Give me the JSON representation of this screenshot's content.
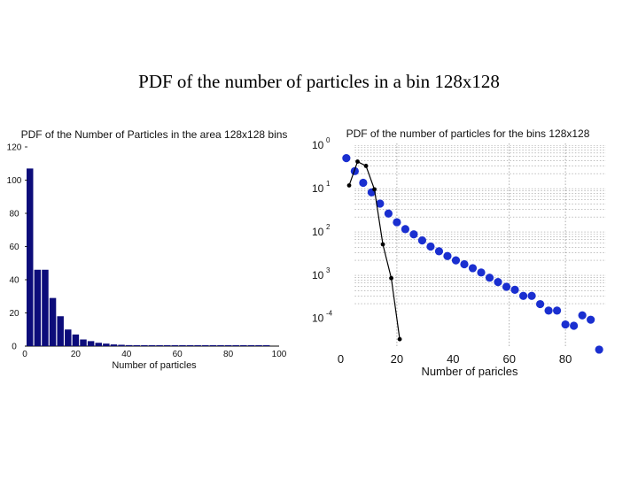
{
  "slide": {
    "title": "PDF of the number of particles in a bin 128x128"
  },
  "colors": {
    "bar": "#0c0c7a",
    "dot": "#1a2fd0",
    "line": "#000000",
    "grid": "#9a9a9a"
  },
  "chart_data": [
    {
      "type": "bar",
      "title": "PDF of the Number of Particles in the area 128x128 bins",
      "xlabel": "Number of particles",
      "ylabel": "",
      "xlim": [
        0,
        100
      ],
      "ylim": [
        0,
        120
      ],
      "xticks": [
        "0",
        "20",
        "40",
        "60",
        "80",
        "100"
      ],
      "yticks": [
        "0",
        "20",
        "40",
        "60",
        "80",
        "100",
        "120"
      ],
      "bar_width": 2.6,
      "x": [
        2,
        5,
        8,
        11,
        14,
        17,
        20,
        23,
        26,
        29,
        32,
        35,
        38,
        41,
        44,
        47,
        50,
        53,
        56,
        59,
        62,
        65,
        68,
        71,
        74,
        77,
        80,
        83,
        86,
        89,
        92,
        95
      ],
      "values": [
        107,
        46,
        46,
        29,
        18,
        10,
        7,
        4,
        3,
        2,
        1.5,
        1,
        0.8,
        0.6,
        0.5,
        0.4,
        0.4,
        0.3,
        0.3,
        0.3,
        0.3,
        0.3,
        0.3,
        0.3,
        0.3,
        0.3,
        0.3,
        0.3,
        0.3,
        0.3,
        0.3,
        0.3
      ]
    },
    {
      "type": "scatter",
      "title": "PDF of the number of particles for the bins 128x128",
      "xlabel": "Number of paricles",
      "ylabel": "",
      "yscale": "log",
      "xlim": [
        -3,
        97
      ],
      "ylim_exp": [
        -4.7,
        0
      ],
      "xticks": [
        "0",
        "20",
        "40",
        "60",
        "80"
      ],
      "ytick_bases": [
        "10",
        "10",
        "10",
        "10",
        "10"
      ],
      "ytick_exps": [
        "0",
        "1",
        "2",
        "3",
        "-4"
      ],
      "grid_x": [
        20,
        60,
        80
      ],
      "series": [
        {
          "name": "blue markers",
          "x": [
            2,
            5,
            8,
            11,
            14,
            17,
            20,
            23,
            26,
            29,
            32,
            35,
            38,
            41,
            44,
            47,
            50,
            53,
            56,
            59,
            62,
            65,
            68,
            71,
            74,
            77,
            80,
            83,
            86,
            89,
            92
          ],
          "log10_y": [
            -0.34,
            -0.64,
            -0.91,
            -1.13,
            -1.39,
            -1.62,
            -1.82,
            -1.98,
            -2.1,
            -2.24,
            -2.38,
            -2.49,
            -2.6,
            -2.7,
            -2.79,
            -2.88,
            -2.98,
            -3.1,
            -3.2,
            -3.31,
            -3.38,
            -3.52,
            -3.52,
            -3.71,
            -3.86,
            -3.86,
            -4.18,
            -4.21,
            -3.97,
            -4.07,
            -4.76
          ]
        },
        {
          "name": "black line",
          "x": [
            3,
            6,
            9,
            12,
            15,
            18,
            21
          ],
          "log10_y": [
            -0.97,
            -0.42,
            -0.52,
            -1.06,
            -2.33,
            -3.11,
            -4.52
          ]
        }
      ]
    }
  ]
}
